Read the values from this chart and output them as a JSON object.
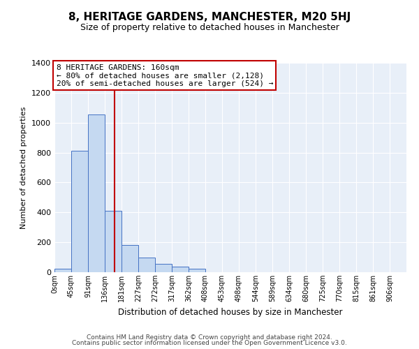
{
  "title": "8, HERITAGE GARDENS, MANCHESTER, M20 5HJ",
  "subtitle": "Size of property relative to detached houses in Manchester",
  "xlabel": "Distribution of detached houses by size in Manchester",
  "ylabel": "Number of detached properties",
  "bar_labels": [
    "0sqm",
    "45sqm",
    "91sqm",
    "136sqm",
    "181sqm",
    "227sqm",
    "272sqm",
    "317sqm",
    "362sqm",
    "408sqm",
    "453sqm",
    "498sqm",
    "544sqm",
    "589sqm",
    "634sqm",
    "680sqm",
    "725sqm",
    "770sqm",
    "815sqm",
    "861sqm",
    "906sqm"
  ],
  "bar_values": [
    22,
    810,
    1055,
    410,
    180,
    100,
    55,
    38,
    22,
    0,
    0,
    0,
    0,
    0,
    0,
    0,
    0,
    0,
    0,
    0,
    0
  ],
  "bar_color": "#c5d9f1",
  "bar_edge_color": "#4472c4",
  "vline_x": 3.6,
  "vline_color": "#c00000",
  "annotation_title": "8 HERITAGE GARDENS: 160sqm",
  "annotation_line1": "← 80% of detached houses are smaller (2,128)",
  "annotation_line2": "20% of semi-detached houses are larger (524) →",
  "annotation_box_color": "#ffffff",
  "annotation_box_edge": "#c00000",
  "ylim": [
    0,
    1400
  ],
  "yticks": [
    0,
    200,
    400,
    600,
    800,
    1000,
    1200,
    1400
  ],
  "xlim": [
    0,
    21
  ],
  "background_color": "#e8eff8",
  "footer1": "Contains HM Land Registry data © Crown copyright and database right 2024.",
  "footer2": "Contains public sector information licensed under the Open Government Licence v3.0."
}
